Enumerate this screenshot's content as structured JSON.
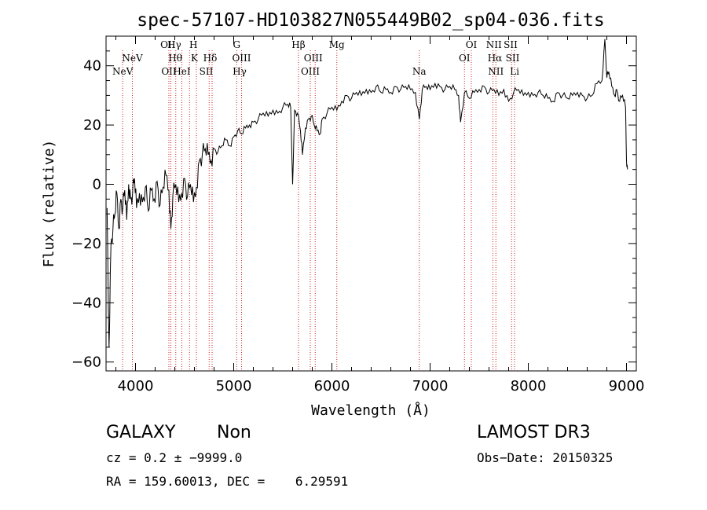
{
  "chart_data": {
    "type": "line",
    "title": "spec-57107-HD103827N055449B02_sp04-036.fits",
    "xlabel": "Wavelength (Å)",
    "ylabel": "Flux (relative)",
    "xlim": [
      3700,
      9100
    ],
    "ylim": [
      -63,
      50
    ],
    "x_ticks": [
      4000,
      5000,
      6000,
      7000,
      8000,
      9000
    ],
    "x_tick_labels": [
      "4000",
      "5000",
      "6000",
      "7000",
      "8000",
      "9000"
    ],
    "y_ticks": [
      -60,
      -40,
      -20,
      0,
      20,
      40
    ],
    "y_tick_labels": [
      "−60",
      "−40",
      "−20",
      "0",
      "20",
      "40"
    ],
    "grid": false,
    "line_color": "#000000",
    "marker_color": "#cc2222",
    "series": [
      {
        "x": [
          3710,
          3730,
          3750,
          3770,
          3790,
          3810,
          3830,
          3850,
          3870,
          3890,
          3910,
          3930,
          3950,
          3970,
          3990,
          4010,
          4040,
          4070,
          4100,
          4130,
          4160,
          4190,
          4220,
          4250,
          4280,
          4310,
          4340,
          4360,
          4380,
          4410,
          4440,
          4470,
          4500,
          4530,
          4560,
          4590,
          4620,
          4650,
          4680,
          4710,
          4740,
          4770,
          4800,
          4840,
          4880,
          4920,
          4960,
          5000,
          5040,
          5080,
          5120,
          5160,
          5200,
          5250,
          5300,
          5350,
          5400,
          5450,
          5500,
          5550,
          5580,
          5600,
          5620,
          5650,
          5680,
          5700,
          5730,
          5760,
          5790,
          5820,
          5850,
          5880,
          5900,
          5950,
          6000,
          6050,
          6100,
          6150,
          6200,
          6250,
          6300,
          6350,
          6400,
          6450,
          6500,
          6550,
          6600,
          6650,
          6700,
          6750,
          6800,
          6850,
          6890,
          6920,
          6960,
          7000,
          7050,
          7100,
          7150,
          7200,
          7250,
          7290,
          7310,
          7350,
          7400,
          7450,
          7500,
          7550,
          7600,
          7650,
          7700,
          7750,
          7800,
          7850,
          7900,
          7950,
          8000,
          8050,
          8100,
          8150,
          8200,
          8250,
          8300,
          8350,
          8400,
          8450,
          8500,
          8550,
          8600,
          8650,
          8700,
          8750,
          8780,
          8800,
          8820,
          8850,
          8880,
          8900,
          8930,
          8960,
          8990,
          9000,
          9010
        ],
        "y": [
          -8,
          -55,
          -20,
          -15,
          -10,
          -3,
          -15,
          -5,
          -8,
          -2,
          -12,
          0,
          -5,
          -3,
          2,
          -8,
          -3,
          -6,
          -1,
          -9,
          -2,
          -5,
          1,
          -7,
          -1,
          3,
          -2,
          -15,
          -4,
          0,
          -6,
          -3,
          2,
          -4,
          0,
          -6,
          -1,
          8,
          10,
          12,
          10,
          8,
          12,
          11,
          13,
          15,
          13,
          16,
          18,
          17,
          19,
          20,
          21,
          22,
          24,
          23,
          25,
          24,
          26,
          27,
          26,
          0,
          25,
          24,
          18,
          10,
          19,
          22,
          23,
          20,
          18,
          17,
          22,
          24,
          26,
          25,
          28,
          30,
          29,
          31,
          30,
          32,
          31,
          33,
          31,
          32,
          31,
          33,
          32,
          33,
          32,
          31,
          22,
          32,
          33,
          32,
          34,
          33,
          32,
          33,
          32,
          30,
          21,
          31,
          29,
          31,
          32,
          33,
          31,
          32,
          30,
          32,
          28,
          31,
          32,
          30,
          31,
          30,
          31,
          30,
          29,
          28,
          31,
          30,
          29,
          30,
          31,
          30,
          29,
          30,
          34,
          35,
          49,
          36,
          38,
          33,
          30,
          32,
          28,
          30,
          26,
          8,
          5
        ]
      }
    ],
    "line_markers": [
      {
        "label": "NeV",
        "x": 3869,
        "row": 3
      },
      {
        "label": "NeV",
        "x": 3968,
        "row": 2
      },
      {
        "label": "OII",
        "x": 4330,
        "row": 1
      },
      {
        "label": "OII",
        "x": 4340,
        "row": 3
      },
      {
        "label": "Hγ",
        "x": 4395,
        "row": 1
      },
      {
        "label": "Hθ",
        "x": 4405,
        "row": 2
      },
      {
        "label": "HeI",
        "x": 4472,
        "row": 3
      },
      {
        "label": "H",
        "x": 4590,
        "row": 1
      },
      {
        "label": "K",
        "x": 4600,
        "row": 2
      },
      {
        "label": "Hδ",
        "x": 4760,
        "row": 2
      },
      {
        "label": "SII",
        "x": 4720,
        "row": 3
      },
      {
        "label": "G",
        "x": 5030,
        "row": 1
      },
      {
        "label": "OIII",
        "x": 5080,
        "row": 2
      },
      {
        "label": "Hγ",
        "x": 5060,
        "row": 3
      },
      {
        "label": "Hβ",
        "x": 5660,
        "row": 1
      },
      {
        "label": "OIII",
        "x": 5810,
        "row": 2
      },
      {
        "label": "OIII",
        "x": 5780,
        "row": 3
      },
      {
        "label": "Mg",
        "x": 6050,
        "row": 1
      },
      {
        "label": "Na",
        "x": 6890,
        "row": 3
      },
      {
        "label": "OI",
        "x": 7420,
        "row": 1
      },
      {
        "label": "OI",
        "x": 7350,
        "row": 2
      },
      {
        "label": "NII",
        "x": 7650,
        "row": 1
      },
      {
        "label": "Hα",
        "x": 7660,
        "row": 2
      },
      {
        "label": "NII",
        "x": 7670,
        "row": 3
      },
      {
        "label": "SII",
        "x": 7820,
        "row": 1
      },
      {
        "label": "SII",
        "x": 7840,
        "row": 2
      },
      {
        "label": "Li",
        "x": 7860,
        "row": 3
      }
    ],
    "vertical_lines_x": [
      3869,
      3968,
      4340,
      4360,
      4410,
      4472,
      4550,
      4620,
      4750,
      4780,
      5030,
      5080,
      5660,
      5780,
      5830,
      6050,
      6890,
      7350,
      7420,
      7640,
      7670,
      7830,
      7860
    ]
  },
  "footer": {
    "object_class": "GALAXY",
    "subclass": "Non",
    "survey": "LAMOST DR3",
    "redshift_text": "cz = 0.2 ± −9999.0",
    "obs_date_text": "Obs−Date: 20150325",
    "coords_text": "RA = 159.60013, DEC =    6.29591"
  }
}
